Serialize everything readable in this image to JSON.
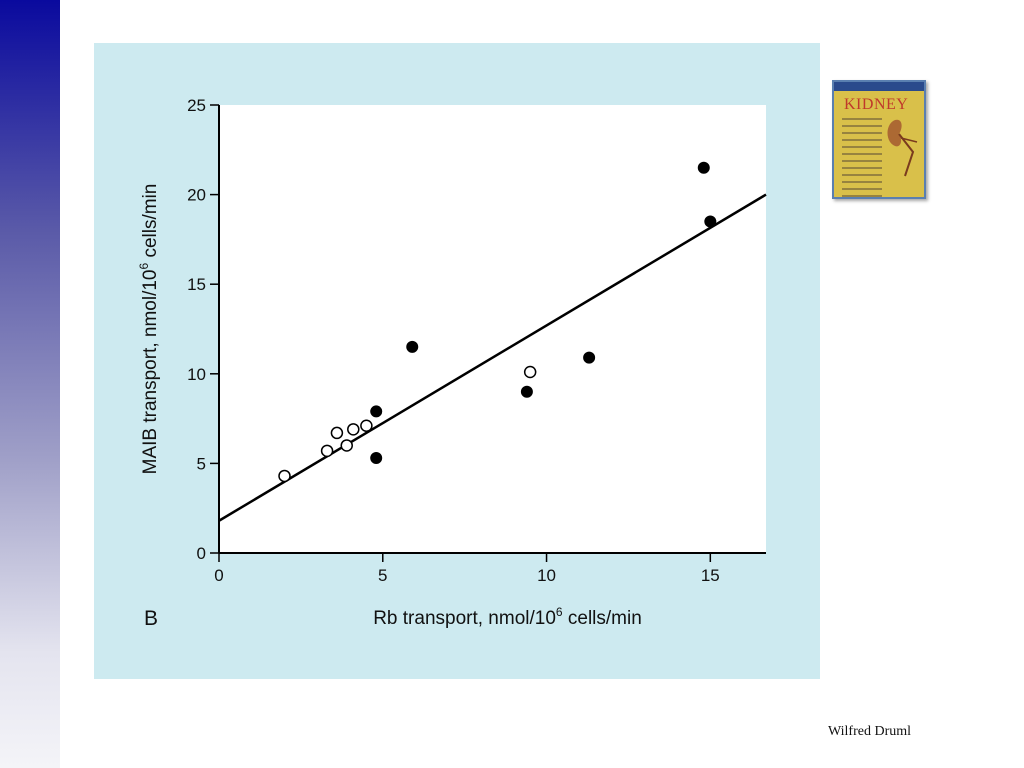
{
  "slide": {
    "author": "Wilfred Druml",
    "book_title": "KIDNEY"
  },
  "colors": {
    "panel_background": "#cdeaf0",
    "plot_background": "#ffffff",
    "left_bar_top": "#0a0a9e",
    "left_bar_bottom": "#f4f4f8"
  },
  "chart_data": {
    "type": "scatter",
    "panel_label": "B",
    "xlabel_parts": [
      "Rb transport, nmol/10",
      "6",
      " cells/min"
    ],
    "ylabel_parts": [
      "MAIB transport, nmol/10",
      "6",
      " cells/min"
    ],
    "xlim": [
      0,
      16.7
    ],
    "ylim": [
      0,
      25
    ],
    "x_ticks": [
      0,
      5,
      10,
      15
    ],
    "y_ticks": [
      0,
      5,
      10,
      15,
      20,
      25
    ],
    "grid": false,
    "series": [
      {
        "marker": "filled-circle",
        "points": [
          [
            4.8,
            7.9
          ],
          [
            4.8,
            5.3
          ],
          [
            5.9,
            11.5
          ],
          [
            9.4,
            9.0
          ],
          [
            11.3,
            10.9
          ],
          [
            14.8,
            21.5
          ],
          [
            15.0,
            18.5
          ]
        ]
      },
      {
        "marker": "open-circle",
        "points": [
          [
            2.0,
            4.3
          ],
          [
            3.3,
            5.7
          ],
          [
            3.6,
            6.7
          ],
          [
            3.9,
            6.0
          ],
          [
            4.1,
            6.9
          ],
          [
            4.5,
            7.1
          ],
          [
            9.5,
            10.1
          ]
        ]
      }
    ],
    "fit_line": {
      "x": [
        0,
        16.7
      ],
      "y": [
        1.8,
        20.0
      ]
    }
  }
}
